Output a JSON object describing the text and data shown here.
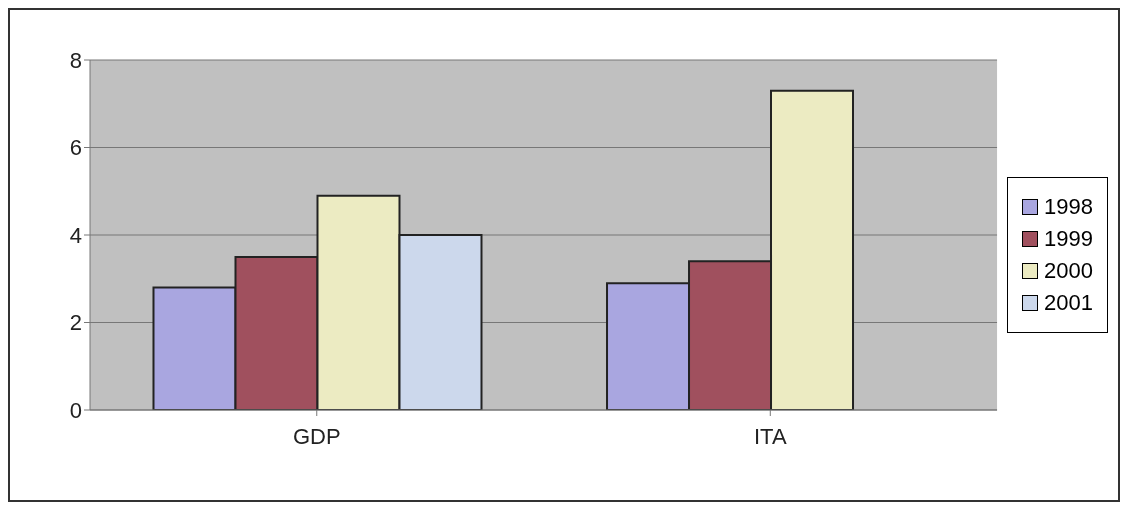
{
  "chart_data": {
    "type": "bar",
    "categories": [
      "GDP",
      "ITA"
    ],
    "series": [
      {
        "name": "1998",
        "color": "#a9a6e0",
        "values": [
          2.8,
          2.9
        ]
      },
      {
        "name": "1999",
        "color": "#a0505e",
        "values": [
          3.5,
          3.4
        ]
      },
      {
        "name": "2000",
        "color": "#ecebc2",
        "values": [
          4.9,
          7.3
        ]
      },
      {
        "name": "2001",
        "color": "#ccd8ec",
        "values": [
          4.0,
          null
        ]
      }
    ],
    "ylim": [
      0,
      8
    ],
    "yticks": [
      0,
      2,
      4,
      6,
      8
    ],
    "grid": "y",
    "legend": "right"
  }
}
